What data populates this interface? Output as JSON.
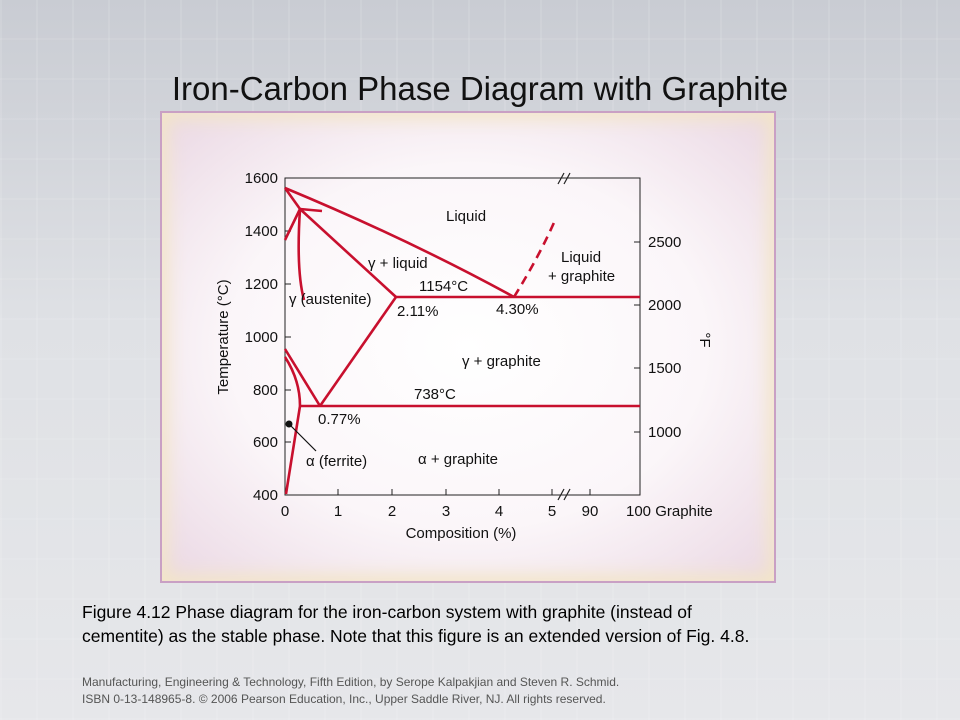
{
  "slide": {
    "title": "Iron-Carbon Phase Diagram with Graphite",
    "caption_line1": "Figure 4.12  Phase diagram for the iron-carbon system with graphite (instead of",
    "caption_line2": "cementite) as the stable phase.  Note that this figure is an extended version of Fig. 4.8.",
    "footer_line1": "Manufacturing, Engineering & Technology, Fifth Edition, by Serope Kalpakjian and Steven R. Schmid.",
    "footer_line2": "ISBN 0-13-148965-8.  © 2006 Pearson Education, Inc., Upper Saddle River, NJ.  All rights reserved."
  },
  "diagram": {
    "y_axis_label": "Temperature (°C)",
    "y_axis_right_label": "°F",
    "x_axis_label": "Composition (%)",
    "y_ticks_left": [
      "1600",
      "1400",
      "1200",
      "1000",
      "800",
      "600",
      "400"
    ],
    "y_ticks_right": [
      "2500",
      "2000",
      "1500",
      "1000"
    ],
    "x_ticks": [
      "0",
      "1",
      "2",
      "3",
      "4",
      "5",
      "90",
      "100 Graphite"
    ],
    "regions": {
      "liquid": "Liquid",
      "gamma_liquid": "γ + liquid",
      "liquid_graphite_1": "Liquid",
      "liquid_graphite_2": "+ graphite",
      "austenite": "γ (austenite)",
      "gamma_graphite": "γ + graphite",
      "ferrite": "α (ferrite)",
      "alpha_graphite": "α + graphite"
    },
    "points": {
      "eutectic_temp": "1154°C",
      "eutectic_gamma_comp": "2.11%",
      "eutectic_comp": "4.30%",
      "eutectoid_temp": "738°C",
      "eutectoid_comp": "0.77%"
    },
    "line_color": "#c8102e"
  }
}
